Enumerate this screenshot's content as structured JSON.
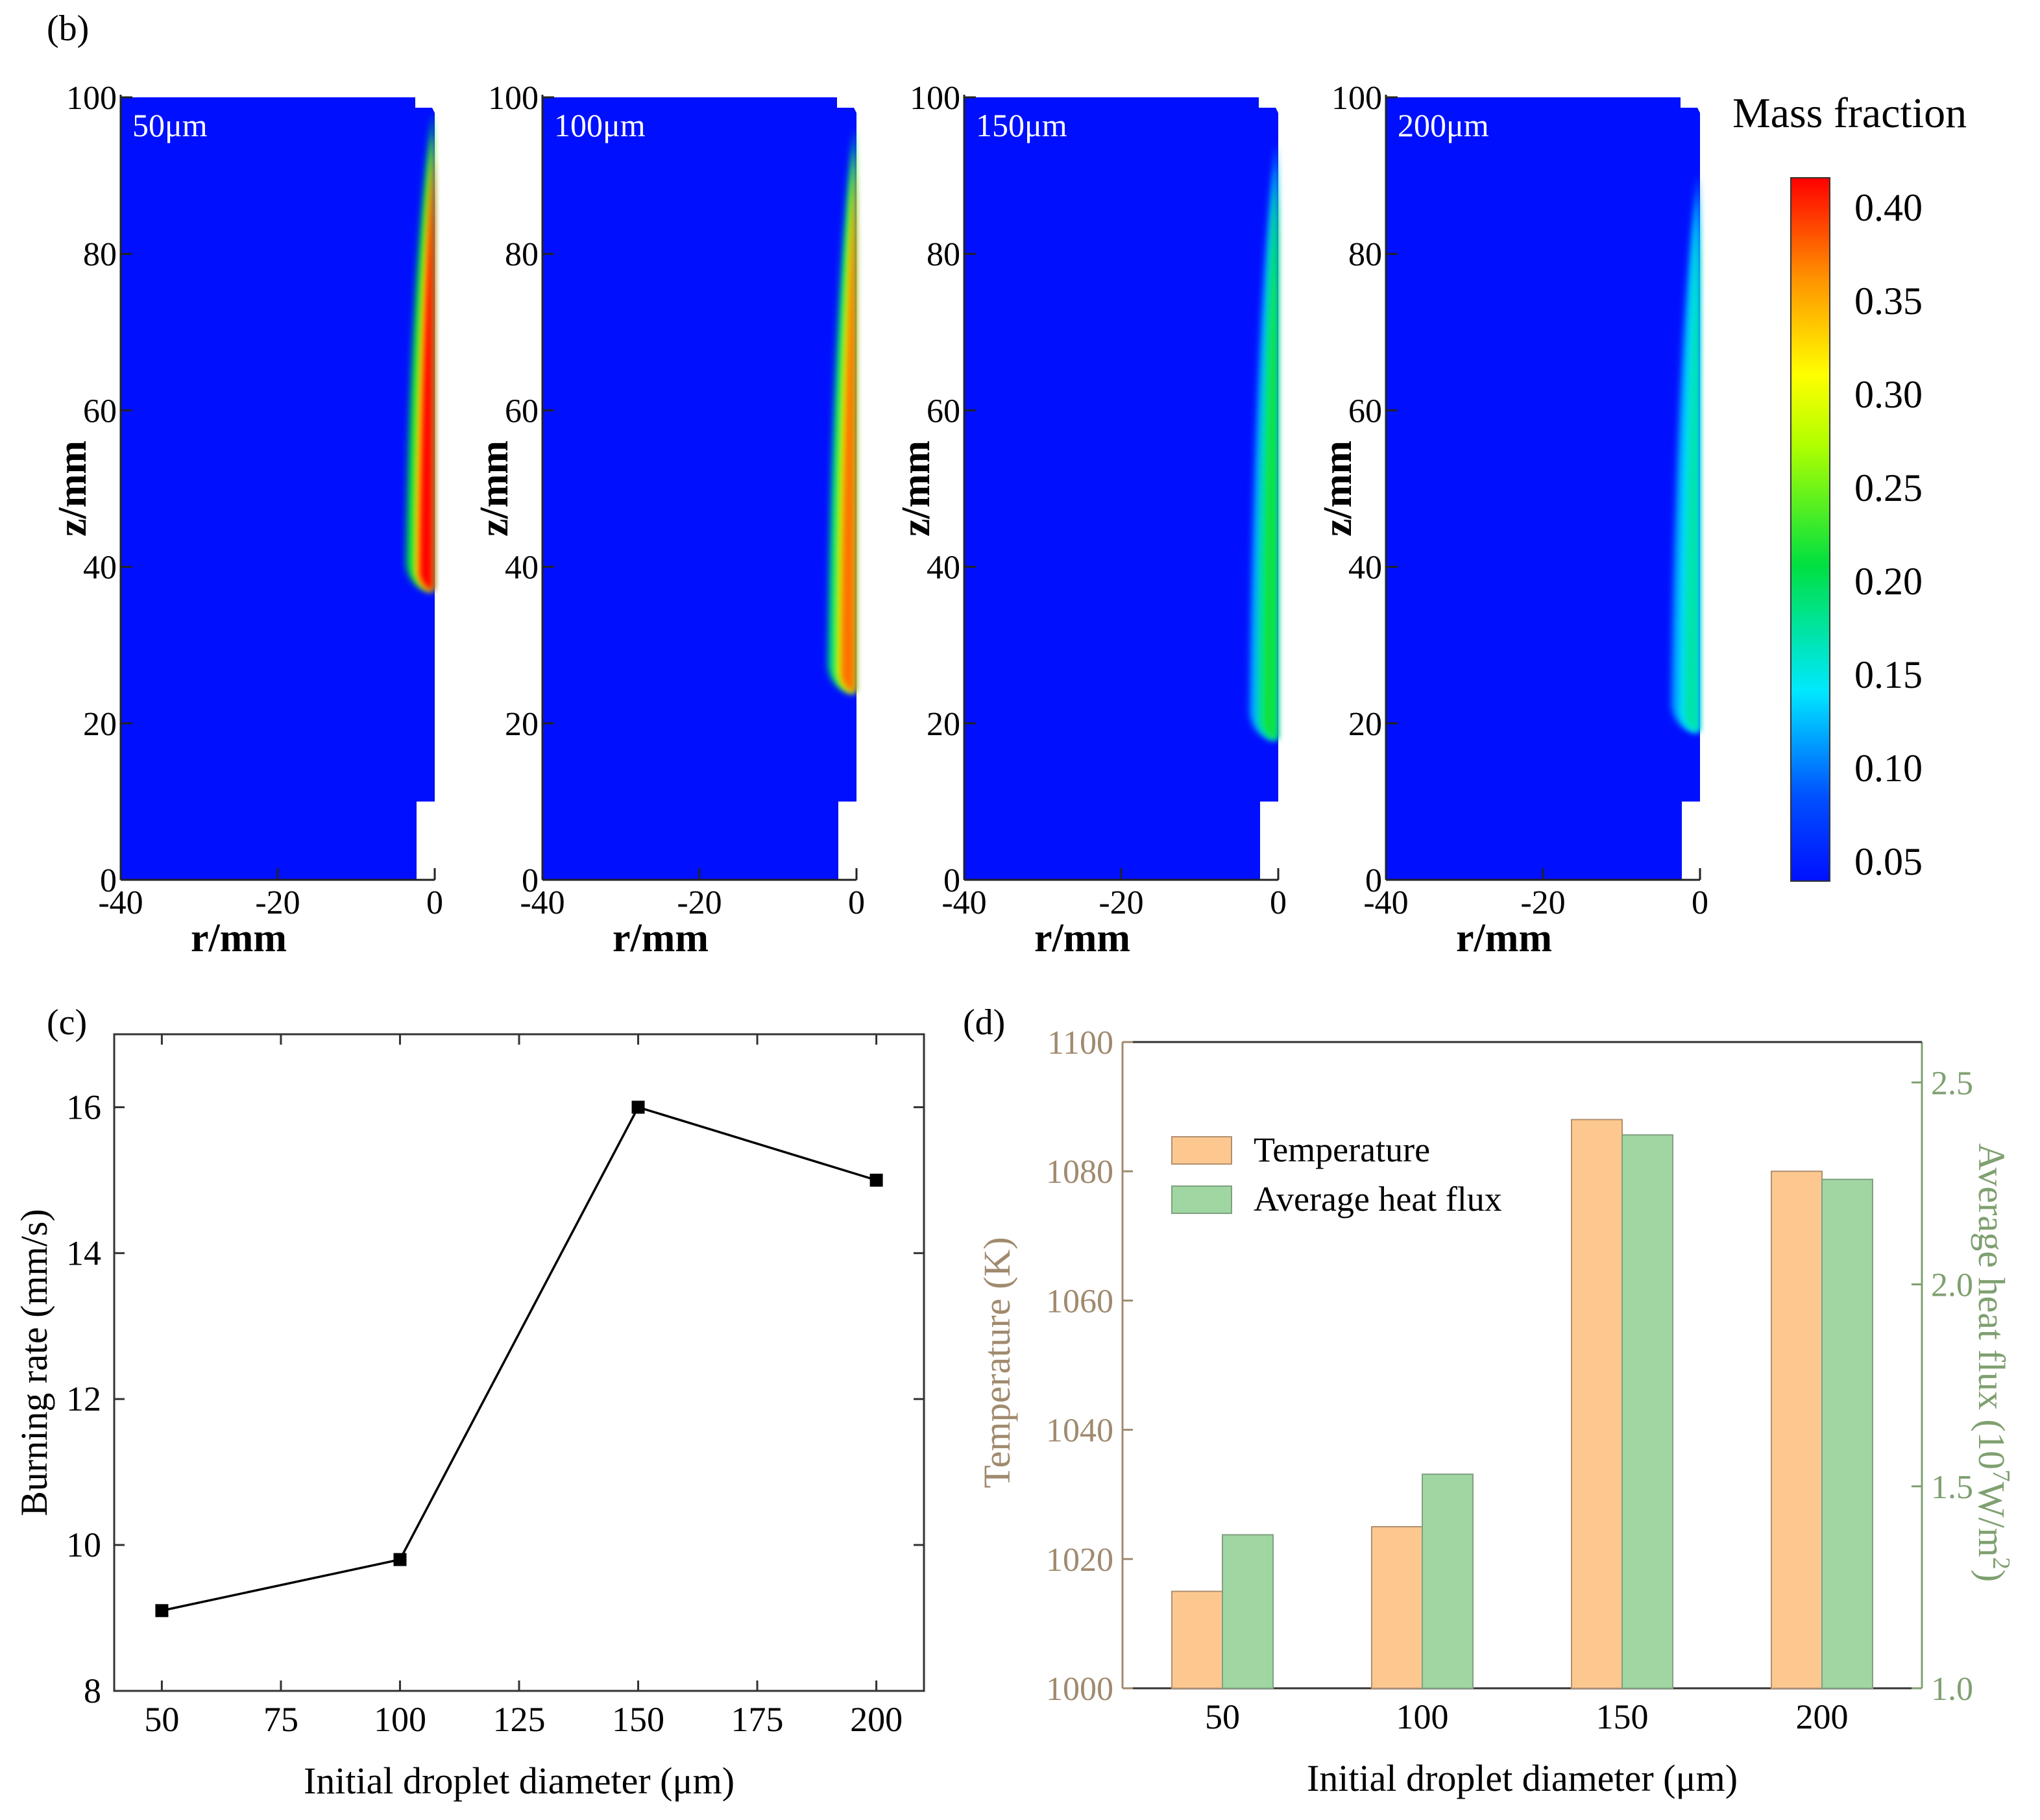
{
  "chart_data": [
    {
      "panel_label": "(b)",
      "type": "heatmap",
      "colorbar": {
        "title": "Mass fraction",
        "ticks": [
          "0.40",
          "0.35",
          "0.30",
          "0.25",
          "0.20",
          "0.15",
          "0.10",
          "0.05"
        ],
        "range": [
          0.05,
          0.42
        ]
      },
      "maps": [
        {
          "label": "50μm",
          "xlabel": "r/mm",
          "ylabel": "z/mm",
          "xticks": [
            "-40",
            "-20",
            "0"
          ],
          "yticks": [
            "0",
            "20",
            "40",
            "60",
            "80",
            "100"
          ],
          "xlim": [
            -40,
            0
          ],
          "ylim": [
            0,
            100
          ],
          "plume_base_z": 37,
          "plume_top_z": 98,
          "peak_value": 0.42
        },
        {
          "label": "100μm",
          "xlabel": "r/mm",
          "ylabel": "z/mm",
          "xticks": [
            "-40",
            "-20",
            "0"
          ],
          "yticks": [
            "0",
            "20",
            "40",
            "60",
            "80",
            "100"
          ],
          "xlim": [
            -40,
            0
          ],
          "ylim": [
            0,
            100
          ],
          "plume_base_z": 24,
          "plume_top_z": 96,
          "peak_value": 0.38
        },
        {
          "label": "150μm",
          "xlabel": "r/mm",
          "ylabel": "z/mm",
          "xticks": [
            "-40",
            "-20",
            "0"
          ],
          "yticks": [
            "0",
            "20",
            "40",
            "60",
            "80",
            "100"
          ],
          "xlim": [
            -40,
            0
          ],
          "ylim": [
            0,
            100
          ],
          "plume_base_z": 18,
          "plume_top_z": 94,
          "peak_value": 0.22
        },
        {
          "label": "200μm",
          "xlabel": "r/mm",
          "ylabel": "z/mm",
          "xticks": [
            "-40",
            "-20",
            "0"
          ],
          "yticks": [
            "0",
            "20",
            "40",
            "60",
            "80",
            "100"
          ],
          "xlim": [
            -40,
            0
          ],
          "ylim": [
            0,
            100
          ],
          "plume_base_z": 19,
          "plume_top_z": 90,
          "peak_value": 0.18
        }
      ]
    },
    {
      "panel_label": "(c)",
      "type": "line",
      "x": [
        50,
        100,
        150,
        200
      ],
      "y": [
        9.1,
        9.8,
        16.0,
        15.0
      ],
      "xlabel": "Initial droplet diameter (μm)",
      "ylabel": "Burning rate (mm/s)",
      "xlim": [
        40,
        210
      ],
      "ylim": [
        8,
        17
      ],
      "xticks": [
        "50",
        "75",
        "100",
        "125",
        "150",
        "175",
        "200"
      ],
      "yticks": [
        "8",
        "10",
        "12",
        "14",
        "16"
      ],
      "color": "#000000"
    },
    {
      "panel_label": "(d)",
      "type": "bar",
      "categories": [
        "50",
        "100",
        "150",
        "200"
      ],
      "series": [
        {
          "name": "Temperature",
          "values": [
            1015,
            1025,
            1088,
            1080
          ],
          "axis": "left",
          "color": "#fdc88f"
        },
        {
          "name": "Average heat flux",
          "values": [
            1.38,
            1.53,
            2.37,
            2.26
          ],
          "axis": "right",
          "color": "#9fd6a2"
        }
      ],
      "xlabel": "Initial droplet diameter (μm)",
      "ylabel_left": "Temperature (K)",
      "ylabel_right_main": "Average heat flux (10",
      "ylabel_right_sup1": "7",
      "ylabel_right_mid": "W/m",
      "ylabel_right_sup2": "2",
      "ylabel_right_end": ")",
      "ylim_left": [
        1000,
        1100
      ],
      "ylim_right": [
        1.0,
        2.6
      ],
      "yticks_left": [
        "1000",
        "1020",
        "1040",
        "1060",
        "1080",
        "1100"
      ],
      "yticks_right": [
        "1.0",
        "1.5",
        "2.0",
        "2.5"
      ],
      "left_axis_color": "#a08a6e",
      "right_axis_color": "#7fa070",
      "legend_position": "top-left"
    }
  ]
}
